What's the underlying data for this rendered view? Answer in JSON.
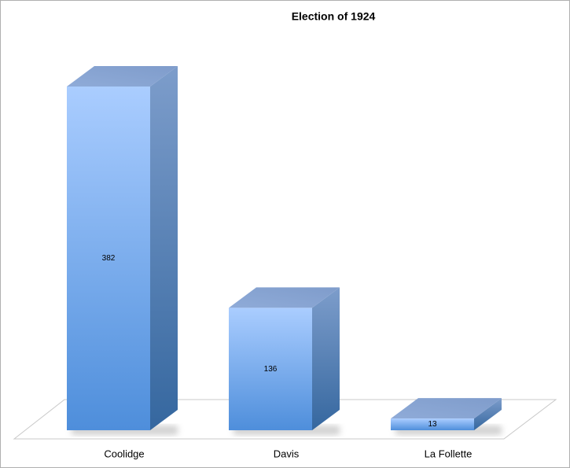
{
  "chart_data": {
    "type": "bar3d",
    "title": "Election of 1924",
    "categories": [
      "Coolidge",
      "Davis",
      "La Follette"
    ],
    "values": [
      382,
      136,
      13
    ],
    "color": "#6fa3e8"
  }
}
